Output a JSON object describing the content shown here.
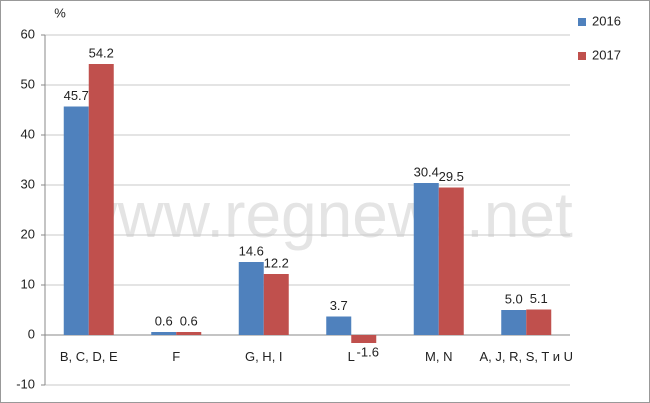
{
  "chart_data": {
    "type": "bar",
    "unit_label": "%",
    "watermark": "www.regnews.net",
    "categories": [
      "B, C, D, E",
      "F",
      "G, H, I",
      "L",
      "M, N",
      "A, J, R, S, T и U"
    ],
    "series": [
      {
        "name": "2016",
        "color": "#4f81bd",
        "values": [
          45.7,
          0.6,
          14.6,
          3.7,
          30.4,
          5.0
        ],
        "value_labels": [
          "45.7",
          "0.6",
          "14.6",
          "3.7",
          "30.4",
          "5.0"
        ]
      },
      {
        "name": "2017",
        "color": "#c0504d",
        "values": [
          54.2,
          0.6,
          12.2,
          -1.6,
          29.5,
          5.1
        ]
      }
    ],
    "ylim": [
      -10,
      60
    ],
    "yticks": [
      -10,
      0,
      10,
      20,
      30,
      40,
      50,
      60
    ],
    "grid": true,
    "legend": "right"
  }
}
